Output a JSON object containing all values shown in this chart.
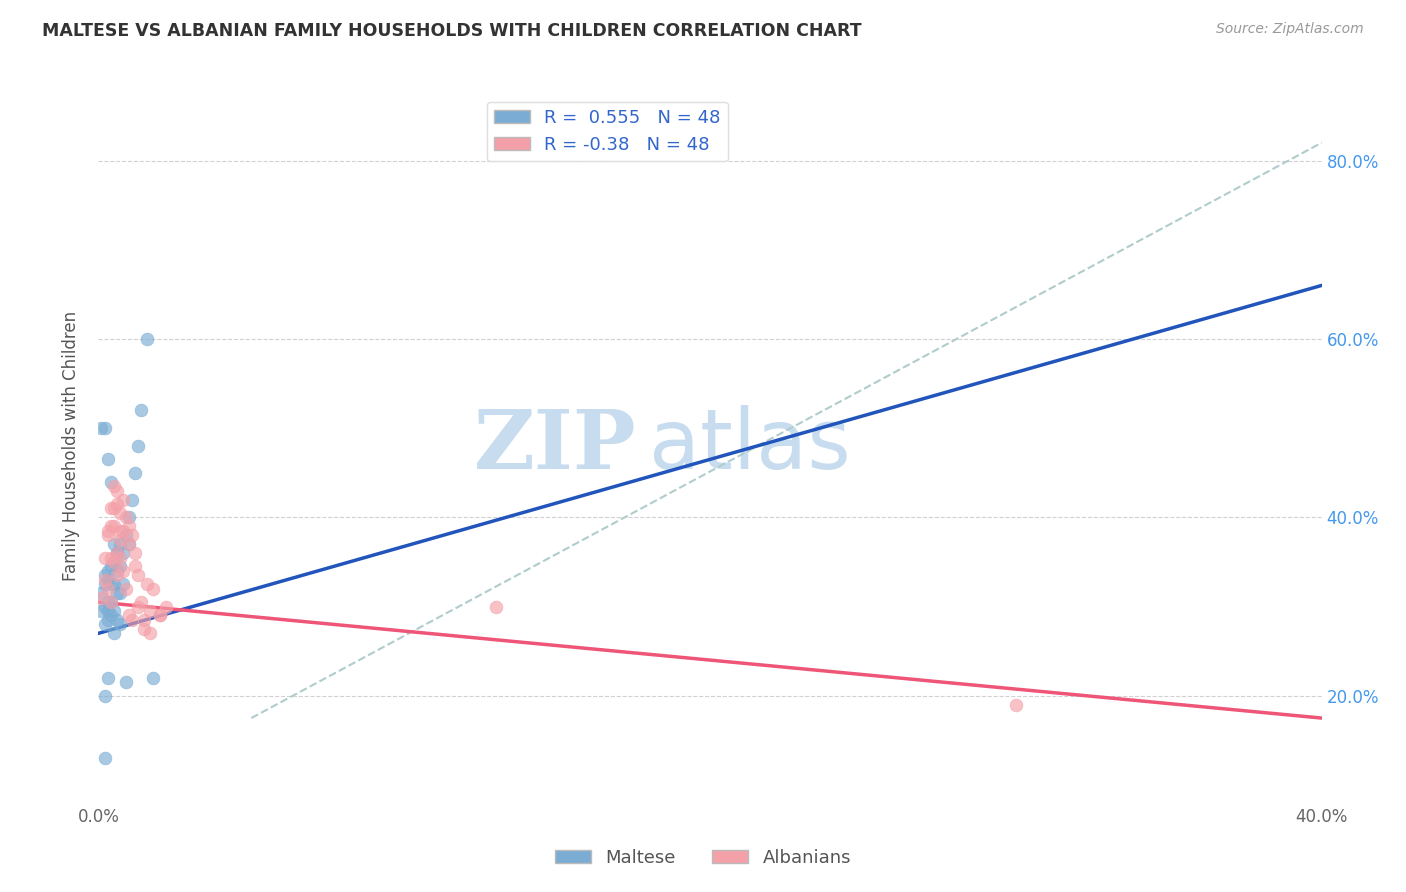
{
  "title": "MALTESE VS ALBANIAN FAMILY HOUSEHOLDS WITH CHILDREN CORRELATION CHART",
  "source": "Source: ZipAtlas.com",
  "ylabel": "Family Households with Children",
  "xlim": [
    0.0,
    0.4
  ],
  "ylim": [
    0.08,
    0.88
  ],
  "xtick_positions": [
    0.0,
    0.05,
    0.1,
    0.15,
    0.2,
    0.25,
    0.3,
    0.35,
    0.4
  ],
  "xtick_labels": [
    "0.0%",
    "",
    "",
    "",
    "",
    "",
    "",
    "",
    "40.0%"
  ],
  "ytick_positions": [
    0.2,
    0.4,
    0.6,
    0.8
  ],
  "ytick_labels": [
    "20.0%",
    "40.0%",
    "60.0%",
    "80.0%"
  ],
  "maltese_R": 0.555,
  "albanian_R": -0.38,
  "N": 48,
  "maltese_color": "#7BADD4",
  "albanian_color": "#F4A0A8",
  "maltese_line_color": "#2255BB",
  "albanian_line_color": "#EE5577",
  "dashed_line_color": "#B0CCCC",
  "maltese_line_x0": 0.0,
  "maltese_line_y0": 0.27,
  "maltese_line_x1": 0.4,
  "maltese_line_y1": 0.66,
  "albanian_line_x0": 0.0,
  "albanian_line_y0": 0.305,
  "albanian_line_x1": 0.4,
  "albanian_line_y1": 0.175,
  "dashed_line_x0": 0.05,
  "dashed_line_y0": 0.175,
  "dashed_line_x1": 0.4,
  "dashed_line_y1": 0.82,
  "maltese_x": [
    0.001,
    0.001,
    0.002,
    0.002,
    0.002,
    0.002,
    0.003,
    0.003,
    0.003,
    0.003,
    0.003,
    0.004,
    0.004,
    0.004,
    0.004,
    0.005,
    0.005,
    0.005,
    0.005,
    0.006,
    0.006,
    0.006,
    0.006,
    0.007,
    0.007,
    0.007,
    0.008,
    0.008,
    0.009,
    0.01,
    0.01,
    0.011,
    0.012,
    0.013,
    0.014,
    0.016,
    0.018,
    0.002,
    0.004,
    0.006,
    0.001,
    0.003,
    0.005,
    0.007,
    0.009,
    0.002,
    0.003,
    0.002
  ],
  "maltese_y": [
    0.295,
    0.315,
    0.335,
    0.325,
    0.3,
    0.28,
    0.34,
    0.33,
    0.305,
    0.295,
    0.285,
    0.345,
    0.325,
    0.305,
    0.29,
    0.35,
    0.325,
    0.295,
    0.27,
    0.36,
    0.34,
    0.315,
    0.285,
    0.37,
    0.345,
    0.315,
    0.36,
    0.325,
    0.38,
    0.4,
    0.37,
    0.42,
    0.45,
    0.48,
    0.52,
    0.6,
    0.22,
    0.5,
    0.44,
    0.36,
    0.5,
    0.465,
    0.37,
    0.28,
    0.215,
    0.2,
    0.22,
    0.13
  ],
  "albanian_x": [
    0.001,
    0.002,
    0.002,
    0.003,
    0.003,
    0.004,
    0.004,
    0.005,
    0.005,
    0.006,
    0.006,
    0.007,
    0.007,
    0.008,
    0.008,
    0.009,
    0.01,
    0.01,
    0.011,
    0.012,
    0.012,
    0.013,
    0.014,
    0.015,
    0.016,
    0.017,
    0.018,
    0.02,
    0.022,
    0.005,
    0.006,
    0.006,
    0.007,
    0.007,
    0.008,
    0.009,
    0.01,
    0.011,
    0.013,
    0.015,
    0.017,
    0.02,
    0.003,
    0.004,
    0.005,
    0.004,
    0.3,
    0.13
  ],
  "albanian_y": [
    0.31,
    0.33,
    0.355,
    0.32,
    0.38,
    0.355,
    0.39,
    0.35,
    0.39,
    0.36,
    0.335,
    0.405,
    0.375,
    0.42,
    0.385,
    0.4,
    0.37,
    0.39,
    0.38,
    0.36,
    0.345,
    0.335,
    0.305,
    0.285,
    0.325,
    0.295,
    0.32,
    0.29,
    0.3,
    0.41,
    0.415,
    0.43,
    0.385,
    0.355,
    0.34,
    0.32,
    0.29,
    0.285,
    0.3,
    0.275,
    0.27,
    0.29,
    0.385,
    0.41,
    0.435,
    0.305,
    0.19,
    0.3
  ]
}
